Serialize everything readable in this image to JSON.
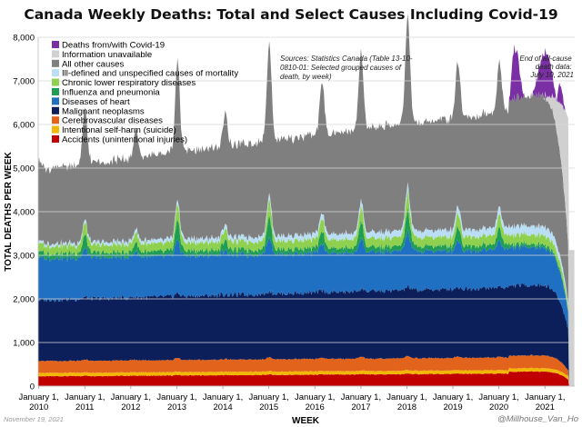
{
  "chart_data": {
    "type": "area",
    "stacked": true,
    "title": "Canada Weekly Deaths: Total and Select Causes Including Covid-19",
    "xlabel": "WEEK",
    "ylabel": "TOTAL DEATHS PER WEEK",
    "ylim": [
      0,
      8000
    ],
    "y_ticks": [
      0,
      1000,
      2000,
      3000,
      4000,
      5000,
      6000,
      7000,
      8000
    ],
    "y_tick_labels": [
      "0",
      "1,000",
      "2,000",
      "3,000",
      "4,000",
      "5,000",
      "6,000",
      "7,000",
      "8,000"
    ],
    "x_tick_labels": [
      [
        "January 1,",
        "2010"
      ],
      [
        "January 1,",
        "2011"
      ],
      [
        "January 1,",
        "2012"
      ],
      [
        "January 1,",
        "2013"
      ],
      [
        "January 1,",
        "2014"
      ],
      [
        "January 1,",
        "2015"
      ],
      [
        "January 1,",
        "2016"
      ],
      [
        "January 1,",
        "2017"
      ],
      [
        "January 1,",
        "2018"
      ],
      [
        "January 1,",
        "2019"
      ],
      [
        "January 1,",
        "2020"
      ],
      [
        "January 1,",
        "2021"
      ]
    ],
    "x_ticks": [
      "2010-01-01",
      "2011-01-01",
      "2012-01-01",
      "2013-01-01",
      "2014-01-01",
      "2015-01-01",
      "2016-01-01",
      "2017-01-01",
      "2018-01-01",
      "2019-01-01",
      "2020-01-01",
      "2021-01-01"
    ],
    "x_range": [
      "2009-12-27",
      "2021-08-25"
    ],
    "grid": true,
    "legend_position": "top-left",
    "legend_order": [
      "covid",
      "unavail",
      "other",
      "illdef",
      "clrd",
      "flu",
      "heart",
      "cancer",
      "cereb",
      "suicide",
      "accidents"
    ],
    "series": [
      {
        "key": "accidents",
        "name": "Accidents (unintentional injuries)",
        "color": "#c00000",
        "base": 225,
        "winter_peak": 15,
        "trend_per_year": 6,
        "covid_extra": 45,
        "peak_timing": "mid-winter"
      },
      {
        "key": "suicide",
        "name": "Intentional self-harm (suicide)",
        "color": "#f2b705",
        "base": 78,
        "winter_peak": 0,
        "trend_per_year": 0,
        "covid_extra": 0,
        "peak_timing": "mid-winter"
      },
      {
        "key": "cereb",
        "name": "Cerebrovascular diseases",
        "color": "#e2631c",
        "base": 270,
        "winter_peak": 40,
        "trend_per_year": 2,
        "covid_extra": 0,
        "peak_timing": "mid-winter"
      },
      {
        "key": "cancer",
        "name": "Malignant neoplasms",
        "color": "#0c1f5a",
        "base": 1400,
        "winter_peak": 20,
        "trend_per_year": 20,
        "covid_extra": 0,
        "peak_timing": "mid-winter"
      },
      {
        "key": "heart",
        "name": "Diseases of heart",
        "color": "#1f6fc2",
        "base": 950,
        "winter_peak": 220,
        "trend_per_year": -7,
        "covid_extra": 0,
        "peak_timing": "mid-winter"
      },
      {
        "key": "flu",
        "name": "Influenza and pneumonia",
        "color": "#1f9d55",
        "base": 110,
        "winter_peak": 160,
        "trend_per_year": 0,
        "covid_extra": -40,
        "peak_timing": "mid-winter"
      },
      {
        "key": "clrd",
        "name": "Chronic lower respiratory diseases",
        "color": "#8fd14f",
        "base": 170,
        "winter_peak": 90,
        "trend_per_year": 4,
        "covid_extra": 0,
        "peak_timing": "mid-winter"
      },
      {
        "key": "illdef",
        "name": "Ill-defined and unspecified causes of mortality",
        "color": "#b9def5",
        "base": 55,
        "winter_peak": 10,
        "trend_per_year": 12,
        "covid_extra": 20,
        "peak_timing": "mid-winter"
      },
      {
        "key": "other",
        "name": "All other causes",
        "color": "#7f7f7f",
        "base": 1700,
        "winter_peak": 700,
        "trend_per_year": 95,
        "covid_extra": 250,
        "peak_timing": "mid-winter"
      },
      {
        "key": "unavail",
        "name": "Information unavailable",
        "color": "#d0d0d0",
        "base": 0,
        "winter_peak": 0,
        "trend_per_year": 0,
        "covid_extra": 0,
        "peak_timing": "mid-winter"
      },
      {
        "key": "covid",
        "name": "Deaths from/with Covid-19",
        "color": "#7b2fa5",
        "base": 0,
        "winter_peak": 0,
        "trend_per_year": 0,
        "covid_extra": 0,
        "peak_timing": "mid-winter"
      }
    ],
    "flu_season_peaks": [
      {
        "date": "2010-01-10",
        "extra": 100
      },
      {
        "date": "2011-01-02",
        "extra": 540
      },
      {
        "date": "2012-02-12",
        "extra": 260
      },
      {
        "date": "2013-01-06",
        "extra": 900
      },
      {
        "date": "2014-01-19",
        "extra": 330
      },
      {
        "date": "2015-01-04",
        "extra": 1000
      },
      {
        "date": "2016-02-28",
        "extra": 500
      },
      {
        "date": "2017-01-01",
        "extra": 760
      },
      {
        "date": "2018-01-07",
        "extra": 1050
      },
      {
        "date": "2019-02-10",
        "extra": 550
      },
      {
        "date": "2020-01-05",
        "extra": 500
      }
    ],
    "covid_waves": [
      {
        "start": "2020-03-22",
        "peak": "2020-05-03",
        "end": "2020-07-19",
        "peak_deaths": 1150
      },
      {
        "start": "2020-09-20",
        "peak": "2021-01-10",
        "end": "2021-04-04",
        "peak_deaths": 1000
      },
      {
        "start": "2021-04-04",
        "peak": "2021-04-25",
        "end": "2021-06-13",
        "peak_deaths": 430
      }
    ],
    "reporting_lag": {
      "start": "2020-11-01",
      "end": "2021-07-10",
      "fraction_unavailable_at_end": 0.65
    },
    "annotations": {
      "sources": [
        "Sources: Statistics Canada (Table 13-10-",
        "0810-01: Selected grouped causes of",
        "death, by week)"
      ],
      "end_note": [
        "End of all-cause",
        "death data:",
        "July 10, 2021"
      ]
    }
  },
  "footer": {
    "date": "November 19, 2021",
    "credit": "@Millhouse_Van_Ho"
  }
}
